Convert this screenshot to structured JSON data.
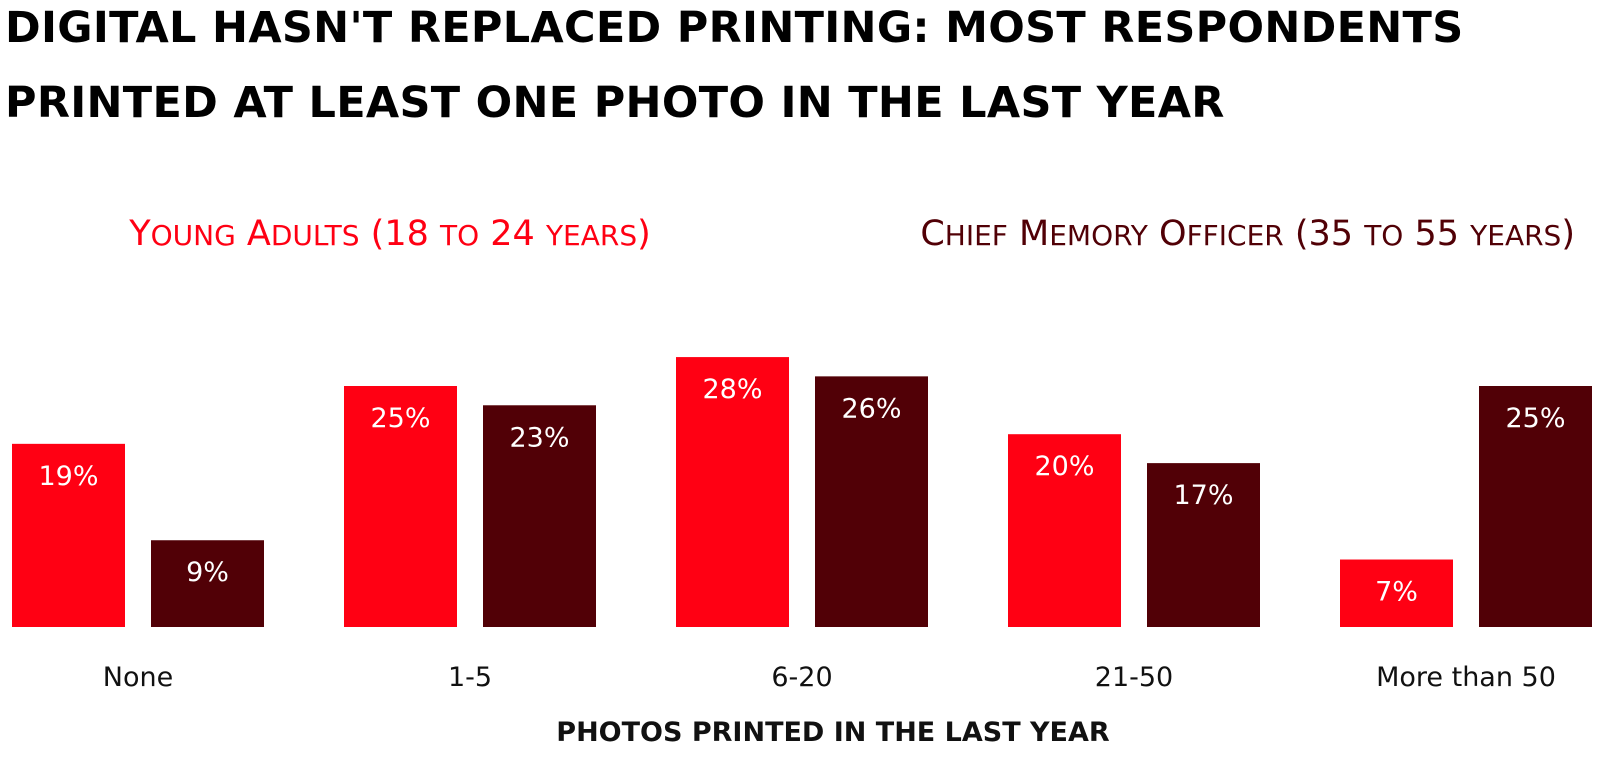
{
  "chart_data": {
    "type": "bar",
    "title_lines": [
      "DIGITAL HASN'T REPLACED PRINTING: MOST RESPONDENTS",
      "PRINTED AT LEAST ONE PHOTO IN THE LAST YEAR"
    ],
    "xlabel": "PHOTOS PRINTED IN THE LAST YEAR",
    "ylabel": "",
    "categories": [
      "None",
      "1-5",
      "6-20",
      "21-50",
      "More than 50"
    ],
    "series": [
      {
        "name": "Young Adults (18 to 24 years)",
        "color": "#ff0013",
        "values": [
          19,
          25,
          28,
          20,
          7
        ],
        "value_labels": [
          "19%",
          "25%",
          "28%",
          "20%",
          "7%"
        ]
      },
      {
        "name": "Chief Memory Officer (35 to 55 years)",
        "color": "#510006",
        "values": [
          9,
          23,
          26,
          17,
          25
        ],
        "value_labels": [
          "9%",
          "23%",
          "26%",
          "17%",
          "25%"
        ]
      }
    ],
    "ylim": [
      0,
      30
    ],
    "grid": false,
    "legend_position": "top"
  }
}
